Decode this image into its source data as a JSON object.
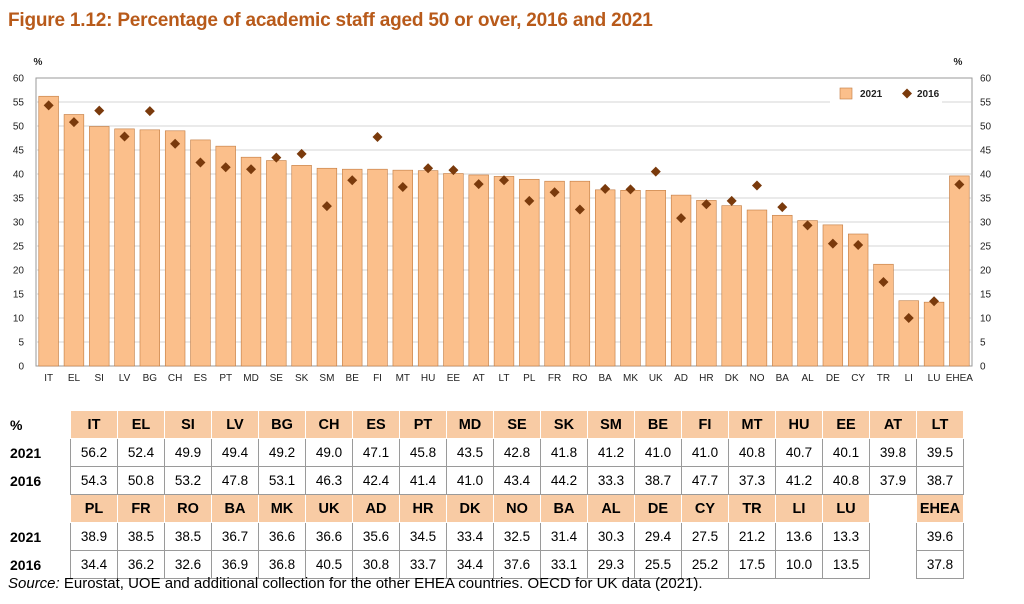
{
  "title": "Figure 1.12: Percentage of academic staff aged 50 or over, 2016 and 2021",
  "source_label": "Source:",
  "source_text": " Eurostat, UOE and additional collection for the other EHEA countries. OECD for UK data (2021).",
  "colors": {
    "bar": "#fbbf8b",
    "bar_stroke": "#c07a40",
    "marker": "#7a3a0c",
    "title": "#b85a1a",
    "header_bg": "#f8cba4"
  },
  "chart_data": {
    "type": "bar",
    "title": "Percentage of academic staff aged 50 or over, 2016 and 2021",
    "ylabel_left": "%",
    "ylabel_right": "%",
    "ylim": [
      0,
      60
    ],
    "yticks": [
      0,
      5,
      10,
      15,
      20,
      25,
      30,
      35,
      40,
      45,
      50,
      55,
      60
    ],
    "legend_position": "top-right",
    "categories": [
      "IT",
      "EL",
      "SI",
      "LV",
      "BG",
      "CH",
      "ES",
      "PT",
      "MD",
      "SE",
      "SK",
      "SM",
      "BE",
      "FI",
      "MT",
      "HU",
      "EE",
      "AT",
      "LT",
      "PL",
      "FR",
      "RO",
      "BA",
      "MK",
      "UK",
      "AD",
      "HR",
      "DK",
      "NO",
      "BA",
      "AL",
      "DE",
      "CY",
      "TR",
      "LI",
      "LU",
      "EHEA"
    ],
    "series": [
      {
        "name": "2021",
        "kind": "bar",
        "values": [
          56.2,
          52.4,
          49.9,
          49.4,
          49.2,
          49.0,
          47.1,
          45.8,
          43.5,
          42.8,
          41.8,
          41.2,
          41.0,
          41.0,
          40.8,
          40.7,
          40.1,
          39.8,
          39.5,
          38.9,
          38.5,
          38.5,
          36.7,
          36.6,
          36.6,
          35.6,
          34.5,
          33.4,
          32.5,
          31.4,
          30.3,
          29.4,
          27.5,
          21.2,
          13.6,
          13.3,
          39.6
        ]
      },
      {
        "name": "2016",
        "kind": "marker",
        "values": [
          54.3,
          50.8,
          53.2,
          47.8,
          53.1,
          46.3,
          42.4,
          41.4,
          41.0,
          43.4,
          44.2,
          33.3,
          38.7,
          47.7,
          37.3,
          41.2,
          40.8,
          37.9,
          38.7,
          34.4,
          36.2,
          32.6,
          36.9,
          36.8,
          40.5,
          30.8,
          33.7,
          34.4,
          37.6,
          33.1,
          29.3,
          25.5,
          25.2,
          17.5,
          10.0,
          13.5,
          37.8
        ]
      }
    ]
  },
  "table": {
    "corner": "%",
    "row1": {
      "headers": [
        "IT",
        "EL",
        "SI",
        "LV",
        "BG",
        "CH",
        "ES",
        "PT",
        "MD",
        "SE",
        "SK",
        "SM",
        "BE",
        "FI",
        "MT",
        "HU",
        "EE",
        "AT",
        "LT"
      ],
      "label_a": "2021",
      "a": [
        "56.2",
        "52.4",
        "49.9",
        "49.4",
        "49.2",
        "49.0",
        "47.1",
        "45.8",
        "43.5",
        "42.8",
        "41.8",
        "41.2",
        "41.0",
        "41.0",
        "40.8",
        "40.7",
        "40.1",
        "39.8",
        "39.5"
      ],
      "label_b": "2016",
      "b": [
        "54.3",
        "50.8",
        "53.2",
        "47.8",
        "53.1",
        "46.3",
        "42.4",
        "41.4",
        "41.0",
        "43.4",
        "44.2",
        "33.3",
        "38.7",
        "47.7",
        "37.3",
        "41.2",
        "40.8",
        "37.9",
        "38.7"
      ]
    },
    "row2": {
      "headers": [
        "PL",
        "FR",
        "RO",
        "BA",
        "MK",
        "UK",
        "AD",
        "HR",
        "DK",
        "NO",
        "BA",
        "AL",
        "DE",
        "CY",
        "TR",
        "LI",
        "LU"
      ],
      "label_a": "2021",
      "a": [
        "38.9",
        "38.5",
        "38.5",
        "36.7",
        "36.6",
        "36.6",
        "35.6",
        "34.5",
        "33.4",
        "32.5",
        "31.4",
        "30.3",
        "29.4",
        "27.5",
        "21.2",
        "13.6",
        "13.3"
      ],
      "label_b": "2016",
      "b": [
        "34.4",
        "36.2",
        "32.6",
        "36.9",
        "36.8",
        "40.5",
        "30.8",
        "33.7",
        "34.4",
        "37.6",
        "33.1",
        "29.3",
        "25.5",
        "25.2",
        "17.5",
        "10.0",
        "13.5"
      ],
      "ehea_header": "EHEA",
      "ehea_a": "39.6",
      "ehea_b": "37.8"
    }
  }
}
